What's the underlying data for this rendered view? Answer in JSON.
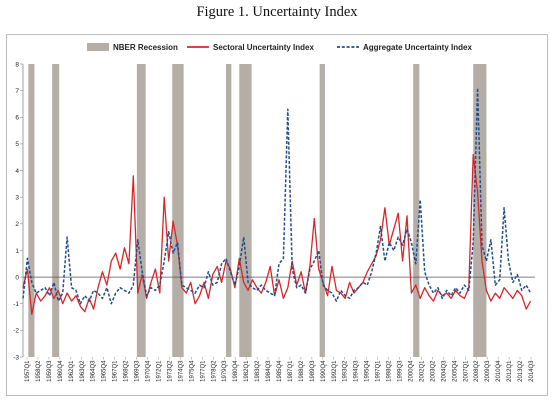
{
  "title": "Figure 1. Uncertainty Index",
  "chart_data": {
    "type": "line",
    "xlabel": "",
    "ylabel": "",
    "ylim": [
      -3,
      8
    ],
    "yticks": [
      -3,
      -2,
      -1,
      0,
      1,
      2,
      3,
      4,
      5,
      6,
      7,
      8
    ],
    "xlim": [
      1957.0,
      2015.0
    ],
    "legend_position": "top-center",
    "grid": false,
    "colors": {
      "recession": "#b5aea6",
      "sectoral": "#d7262b",
      "aggregate": "#1f4e8c"
    },
    "x_tick_labels": [
      "1957Q1",
      "1958Q2",
      "1959Q3",
      "1960Q4",
      "1962Q1",
      "1963Q2",
      "1964Q3",
      "1965Q4",
      "1967Q1",
      "1968Q2",
      "1969Q3",
      "1970Q4",
      "1972Q1",
      "1973Q2",
      "1974Q3",
      "1975Q4",
      "1977Q1",
      "1978Q2",
      "1979Q3",
      "1980Q4",
      "1982Q1",
      "1983Q2",
      "1984Q3",
      "1985Q4",
      "1987Q1",
      "1988Q2",
      "1989Q3",
      "1990Q4",
      "1992Q1",
      "1993Q2",
      "1994Q3",
      "1995Q4",
      "1997Q1",
      "1998Q2",
      "1999Q3",
      "2000Q4",
      "2002Q1",
      "2003Q2",
      "2004Q3",
      "2005Q4",
      "2007Q1",
      "2008Q2",
      "2009Q3",
      "2010Q4",
      "2012Q1",
      "2013Q2",
      "2014Q3"
    ],
    "recessions": [
      {
        "name": "NBER Recession",
        "start": 1957.6,
        "end": 1958.3
      },
      {
        "name": "NBER Recession",
        "start": 1960.3,
        "end": 1961.1
      },
      {
        "name": "NBER Recession",
        "start": 1969.9,
        "end": 1970.9
      },
      {
        "name": "NBER Recession",
        "start": 1973.9,
        "end": 1975.2
      },
      {
        "name": "NBER Recession",
        "start": 1980.0,
        "end": 1980.6
      },
      {
        "name": "NBER Recession",
        "start": 1981.5,
        "end": 1982.9
      },
      {
        "name": "NBER Recession",
        "start": 1990.6,
        "end": 1991.2
      },
      {
        "name": "NBER Recession",
        "start": 2001.2,
        "end": 2001.9
      },
      {
        "name": "NBER Recession",
        "start": 2008.0,
        "end": 2009.5
      }
    ],
    "series": [
      {
        "name": "Sectoral Uncertainty Index",
        "style": "solid",
        "x": [
          1957.0,
          1957.5,
          1958.0,
          1958.5,
          1959.0,
          1959.5,
          1960.0,
          1960.5,
          1961.0,
          1961.5,
          1962.0,
          1962.5,
          1963.0,
          1963.5,
          1964.0,
          1964.5,
          1965.0,
          1965.5,
          1966.0,
          1966.5,
          1967.0,
          1967.5,
          1968.0,
          1968.5,
          1969.0,
          1969.5,
          1970.0,
          1970.5,
          1971.0,
          1971.5,
          1972.0,
          1972.5,
          1973.0,
          1973.5,
          1974.0,
          1974.5,
          1975.0,
          1975.5,
          1976.0,
          1976.5,
          1977.0,
          1977.5,
          1978.0,
          1978.5,
          1979.0,
          1979.5,
          1980.0,
          1980.5,
          1981.0,
          1981.5,
          1982.0,
          1982.5,
          1983.0,
          1983.5,
          1984.0,
          1984.5,
          1985.0,
          1985.5,
          1986.0,
          1986.5,
          1987.0,
          1987.5,
          1988.0,
          1988.5,
          1989.0,
          1989.5,
          1990.0,
          1990.5,
          1991.0,
          1991.5,
          1992.0,
          1992.5,
          1993.0,
          1993.5,
          1994.0,
          1994.5,
          1995.0,
          1995.5,
          1996.0,
          1996.5,
          1997.0,
          1997.5,
          1998.0,
          1998.5,
          1999.0,
          1999.5,
          2000.0,
          2000.5,
          2001.0,
          2001.5,
          2002.0,
          2002.5,
          2003.0,
          2003.5,
          2004.0,
          2004.5,
          2005.0,
          2005.5,
          2006.0,
          2006.5,
          2007.0,
          2007.5,
          2008.0,
          2008.5,
          2009.0,
          2009.5,
          2010.0,
          2010.5,
          2011.0,
          2011.5,
          2012.0,
          2012.5,
          2013.0,
          2013.5,
          2014.0,
          2014.5
        ],
        "y": [
          -0.4,
          0.3,
          -1.4,
          -0.6,
          -0.9,
          -0.7,
          -0.4,
          -0.8,
          -0.5,
          -1.0,
          -0.6,
          -0.9,
          -0.7,
          -1.1,
          -1.3,
          -0.8,
          -1.2,
          -0.4,
          0.2,
          -0.3,
          0.6,
          0.9,
          0.3,
          1.1,
          0.5,
          3.8,
          -0.6,
          0.1,
          -0.8,
          -0.2,
          0.3,
          -0.6,
          3.0,
          0.6,
          2.1,
          1.2,
          -0.4,
          -0.6,
          -0.2,
          -1.0,
          -0.7,
          -0.2,
          -0.8,
          0.1,
          0.4,
          -0.2,
          0.6,
          0.3,
          -0.4,
          0.7,
          -0.2,
          -0.5,
          -0.1,
          -0.4,
          -0.6,
          -0.2,
          0.4,
          -0.7,
          -0.1,
          -0.8,
          -0.4,
          0.6,
          -0.3,
          0.2,
          -0.6,
          0.4,
          2.2,
          0.3,
          -0.2,
          -0.7,
          0.4,
          -0.5,
          -0.6,
          -0.8,
          -0.2,
          -0.6,
          -0.4,
          -0.2,
          0.2,
          0.5,
          0.8,
          1.4,
          2.6,
          1.2,
          1.8,
          2.4,
          0.6,
          2.3,
          -0.6,
          -0.3,
          -0.8,
          -0.4,
          -0.7,
          -0.9,
          -0.5,
          -0.7,
          -0.6,
          -0.8,
          -0.5,
          -0.7,
          -0.8,
          -0.4,
          4.6,
          3.2,
          0.6,
          -0.5,
          -0.9,
          -0.6,
          -0.8,
          -0.4,
          -0.6,
          -0.8,
          -0.5,
          -0.7,
          -1.2,
          -0.9
        ]
      },
      {
        "name": "Aggregate Uncertainty Index",
        "style": "dashed",
        "x": [
          1957.0,
          1957.5,
          1958.0,
          1958.5,
          1959.0,
          1959.5,
          1960.0,
          1960.5,
          1961.0,
          1961.5,
          1962.0,
          1962.5,
          1963.0,
          1963.5,
          1964.0,
          1964.5,
          1965.0,
          1965.5,
          1966.0,
          1966.5,
          1967.0,
          1967.5,
          1968.0,
          1968.5,
          1969.0,
          1969.5,
          1970.0,
          1970.5,
          1971.0,
          1971.5,
          1972.0,
          1972.5,
          1973.0,
          1973.5,
          1974.0,
          1974.5,
          1975.0,
          1975.5,
          1976.0,
          1976.5,
          1977.0,
          1977.5,
          1978.0,
          1978.5,
          1979.0,
          1979.5,
          1980.0,
          1980.5,
          1981.0,
          1981.5,
          1982.0,
          1982.5,
          1983.0,
          1983.5,
          1984.0,
          1984.5,
          1985.0,
          1985.5,
          1986.0,
          1986.5,
          1987.0,
          1987.5,
          1988.0,
          1988.5,
          1989.0,
          1989.5,
          1990.0,
          1990.5,
          1991.0,
          1991.5,
          1992.0,
          1992.5,
          1993.0,
          1993.5,
          1994.0,
          1994.5,
          1995.0,
          1995.5,
          1996.0,
          1996.5,
          1997.0,
          1997.5,
          1998.0,
          1998.5,
          1999.0,
          1999.5,
          2000.0,
          2000.5,
          2001.0,
          2001.5,
          2002.0,
          2002.5,
          2003.0,
          2003.5,
          2004.0,
          2004.5,
          2005.0,
          2005.5,
          2006.0,
          2006.5,
          2007.0,
          2007.5,
          2008.0,
          2008.5,
          2009.0,
          2009.5,
          2010.0,
          2010.5,
          2011.0,
          2011.5,
          2012.0,
          2012.5,
          2013.0,
          2013.5,
          2014.0,
          2014.5
        ],
        "y": [
          -0.8,
          0.7,
          -0.2,
          -0.6,
          -0.5,
          -0.4,
          -0.7,
          -0.2,
          -0.9,
          -0.6,
          1.5,
          -0.4,
          -0.5,
          -1.0,
          -0.7,
          -0.9,
          -0.5,
          -0.6,
          -0.8,
          -0.4,
          -1.0,
          -0.6,
          -0.4,
          -0.5,
          -0.6,
          -0.3,
          1.4,
          0.2,
          -0.7,
          -0.4,
          -0.5,
          -0.3,
          0.6,
          1.7,
          0.9,
          1.3,
          -0.3,
          -0.4,
          -0.5,
          -0.6,
          -0.3,
          -0.4,
          0.2,
          -0.3,
          -0.2,
          0.5,
          0.7,
          0.2,
          -0.3,
          0.4,
          1.5,
          -0.2,
          -0.4,
          -0.5,
          -0.3,
          -0.5,
          -0.6,
          -0.7,
          0.5,
          0.7,
          6.3,
          0.3,
          -0.4,
          -0.3,
          -0.6,
          0.3,
          0.6,
          1.0,
          -0.3,
          -0.5,
          -0.6,
          -0.9,
          -0.5,
          -0.7,
          -0.8,
          -0.5,
          -0.4,
          -0.2,
          -0.3,
          0.2,
          0.9,
          1.9,
          0.6,
          1.3,
          1.0,
          1.5,
          1.2,
          1.8,
          1.3,
          0.5,
          2.9,
          0.2,
          -0.3,
          -0.6,
          -0.4,
          -0.8,
          -0.5,
          -0.7,
          -0.4,
          -0.6,
          -0.3,
          -0.5,
          1.3,
          7.1,
          1.2,
          0.6,
          1.4,
          -0.3,
          -0.1,
          2.6,
          0.6,
          -0.2,
          0.1,
          -0.5,
          -0.3,
          -0.6
        ]
      }
    ]
  }
}
